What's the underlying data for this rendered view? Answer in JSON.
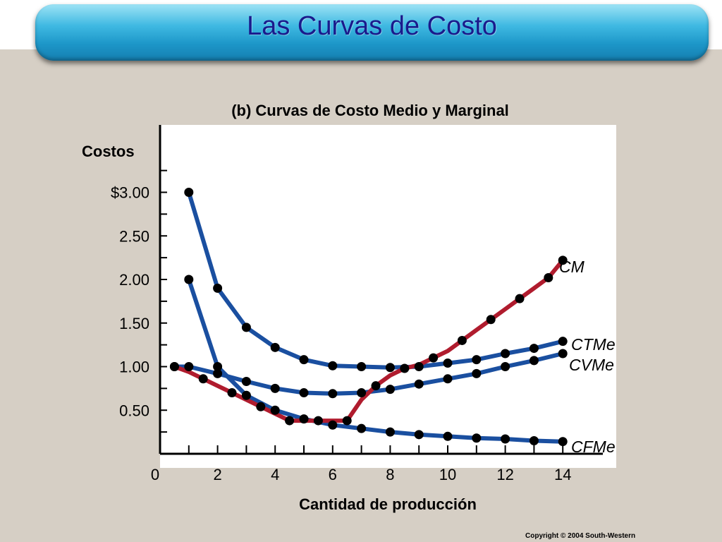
{
  "slide": {
    "title": "Las Curvas de Costo",
    "copyright": "Copyright © 2004  South-Western"
  },
  "colors": {
    "background": "#d6cfc5",
    "title_bar": "#2aa6d4",
    "title_text": "#1a1a8c",
    "plot_area": "#ffffff",
    "blue_series": "#1a4fa0",
    "red_series": "#b01c2e",
    "points": "#000000"
  },
  "chart_data": {
    "type": "line",
    "title": "(b) Curvas de Costo Medio y Marginal",
    "xlabel": "Cantidad de producción",
    "ylabel": "Costos",
    "xlim": [
      0,
      15
    ],
    "ylim": [
      0,
      3.5
    ],
    "x_ticks": [
      0,
      2,
      4,
      6,
      8,
      10,
      12,
      14
    ],
    "y_ticks": [
      {
        "value": 3.0,
        "label": "$3.00"
      },
      {
        "value": 2.5,
        "label": "2.50"
      },
      {
        "value": 2.0,
        "label": "2.00"
      },
      {
        "value": 1.5,
        "label": "1.50"
      },
      {
        "value": 1.0,
        "label": "1.00"
      },
      {
        "value": 0.5,
        "label": "0.50"
      }
    ],
    "grid": false,
    "series": [
      {
        "name": "CM",
        "color": "#b01c2e",
        "x": [
          0.5,
          1,
          1.5,
          2,
          2.5,
          3,
          3.5,
          4,
          4.5,
          5,
          5.5,
          6,
          6.5,
          7,
          7.5,
          8,
          8.5,
          9,
          9.5,
          10,
          10.5,
          11,
          11.5,
          12,
          12.5,
          13,
          13.5,
          14
        ],
        "y": [
          1.0,
          0.94,
          0.86,
          0.78,
          0.7,
          0.62,
          0.54,
          0.46,
          0.38,
          0.38,
          0.38,
          0.38,
          0.38,
          0.62,
          0.78,
          0.9,
          0.98,
          1.02,
          1.1,
          1.18,
          1.3,
          1.42,
          1.54,
          1.66,
          1.78,
          1.9,
          2.02,
          2.22
        ]
      },
      {
        "name": "CTMe",
        "color": "#1a4fa0",
        "x": [
          1,
          2,
          3,
          4,
          5,
          6,
          7,
          8,
          9,
          10,
          11,
          12,
          13,
          14
        ],
        "y": [
          3.0,
          1.9,
          1.45,
          1.22,
          1.08,
          1.01,
          1.0,
          0.99,
          1.0,
          1.04,
          1.08,
          1.15,
          1.21,
          1.29
        ]
      },
      {
        "name": "CVMe",
        "color": "#1a4fa0",
        "x": [
          0.5,
          1,
          2,
          3,
          4,
          5,
          6,
          7,
          8,
          9,
          10,
          11,
          12,
          13,
          14
        ],
        "y": [
          1.0,
          1.0,
          0.92,
          0.83,
          0.75,
          0.7,
          0.69,
          0.7,
          0.74,
          0.8,
          0.86,
          0.92,
          1.0,
          1.07,
          1.15
        ]
      },
      {
        "name": "CFMe",
        "color": "#1a4fa0",
        "x": [
          1,
          2,
          3,
          4,
          5,
          6,
          7,
          8,
          9,
          10,
          11,
          12,
          13,
          14
        ],
        "y": [
          2.0,
          1.0,
          0.67,
          0.5,
          0.4,
          0.33,
          0.29,
          0.25,
          0.22,
          0.2,
          0.18,
          0.17,
          0.15,
          0.14
        ]
      }
    ]
  }
}
